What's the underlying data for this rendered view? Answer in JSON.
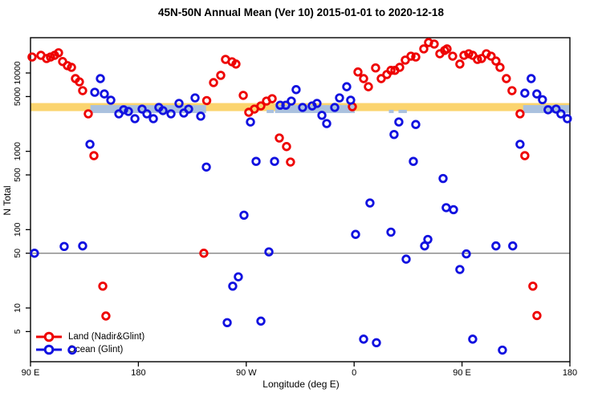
{
  "title": "45N-50N Annual Mean (Ver 10)   2015-01-01 to 2020-12-18",
  "chart_data": {
    "type": "scatter",
    "title": "45N-50N Annual Mean (Ver 10)   2015-01-01 to 2020-12-18",
    "xlabel": "Longitude (deg E)",
    "ylabel": "N Total",
    "y_scale": "log10",
    "x_axis_note": "x stored as degrees along axis from left edge; axis starts at 90E and wraps eastward through 180, 90W, 0, 90E to 180 (450 deg total)",
    "xlim": [
      0,
      450
    ],
    "ylim": [
      2.5,
      30000
    ],
    "grid": false,
    "x_ticks": [
      {
        "pos": 0,
        "label": "90 E"
      },
      {
        "pos": 90,
        "label": "180"
      },
      {
        "pos": 180,
        "label": "90 W"
      },
      {
        "pos": 270,
        "label": "0"
      },
      {
        "pos": 360,
        "label": "90 E"
      },
      {
        "pos": 450,
        "label": "180"
      }
    ],
    "y_ticks": [
      {
        "v": 10000,
        "label": "10000"
      },
      {
        "v": 5000,
        "label": "5000"
      },
      {
        "v": 1000,
        "label": "1000"
      },
      {
        "v": 500,
        "label": "500"
      },
      {
        "v": 100,
        "label": "100"
      },
      {
        "v": 50,
        "label": "50"
      },
      {
        "v": 10,
        "label": "10"
      },
      {
        "v": 5,
        "label": "5"
      }
    ],
    "reference_line": {
      "value": 50,
      "color": "#8c8c8c"
    },
    "bands": {
      "orange": {
        "color": "#FBD46E",
        "range_deg": [
          0,
          450
        ],
        "value_range": [
          3260,
          4130
        ]
      },
      "blue": {
        "color": "#AAC1DE",
        "value_range": [
          3080,
          3890
        ],
        "segments_deg": [
          [
            50,
            146.5
          ],
          [
            204,
            270.5
          ],
          [
            411,
            450
          ]
        ],
        "fragments_deg": [
          [
            197,
            203
          ],
          [
            299,
            303
          ],
          [
            307,
            314
          ]
        ]
      }
    },
    "legend_position": "bottom-left",
    "series": [
      {
        "name": "Land (Nadir&Glint)",
        "color": "#EE0000",
        "points": [
          [
            1.3,
            16000
          ],
          [
            8.7,
            16800
          ],
          [
            13.4,
            15300
          ],
          [
            16.7,
            16000
          ],
          [
            20.1,
            16800
          ],
          [
            23.4,
            18100
          ],
          [
            26.8,
            14000
          ],
          [
            30.8,
            12400
          ],
          [
            34.2,
            11800
          ],
          [
            37.5,
            8480
          ],
          [
            40.8,
            7710
          ],
          [
            43.5,
            5950
          ],
          [
            48.2,
            3010
          ],
          [
            52.9,
            880
          ],
          [
            60.3,
            19
          ],
          [
            62.9,
            7.9
          ],
          [
            144.6,
            50
          ],
          [
            147.0,
            4440
          ],
          [
            152.7,
            7540
          ],
          [
            158.7,
            9330
          ],
          [
            162.7,
            14900
          ],
          [
            168.1,
            13900
          ],
          [
            171.4,
            13000
          ],
          [
            177.5,
            5180
          ],
          [
            182.1,
            3150
          ],
          [
            186.8,
            3460
          ],
          [
            192.2,
            3800
          ],
          [
            196.9,
            4380
          ],
          [
            201.6,
            4700
          ],
          [
            207.6,
            1480
          ],
          [
            213.6,
            1150
          ],
          [
            216.9,
            730
          ],
          [
            268.5,
            3710
          ],
          [
            273.2,
            10300
          ],
          [
            277.9,
            8480
          ],
          [
            281.9,
            6680
          ],
          [
            287.9,
            11600
          ],
          [
            292.6,
            8480
          ],
          [
            297.3,
            9560
          ],
          [
            300.7,
            10800
          ],
          [
            304.0,
            10800
          ],
          [
            308.0,
            11800
          ],
          [
            312.7,
            14600
          ],
          [
            317.4,
            16400
          ],
          [
            321.4,
            16000
          ],
          [
            328.1,
            20300
          ],
          [
            332.1,
            24500
          ],
          [
            336.8,
            23400
          ],
          [
            341.5,
            17600
          ],
          [
            345.5,
            19400
          ],
          [
            347.5,
            20300
          ],
          [
            352.2,
            16400
          ],
          [
            358.2,
            13000
          ],
          [
            361.6,
            16800
          ],
          [
            365.6,
            17600
          ],
          [
            368.9,
            16800
          ],
          [
            372.9,
            14900
          ],
          [
            376.3,
            15300
          ],
          [
            380.3,
            17600
          ],
          [
            384.3,
            16400
          ],
          [
            388.3,
            14200
          ],
          [
            391.7,
            11800
          ],
          [
            397.0,
            8480
          ],
          [
            401.7,
            5950
          ],
          [
            408.4,
            3010
          ],
          [
            412.4,
            880
          ],
          [
            419.1,
            19
          ],
          [
            422.5,
            8
          ]
        ]
      },
      {
        "name": "Ocean (Glint)",
        "color": "#1111E0",
        "points": [
          [
            3.3,
            50
          ],
          [
            28.1,
            61
          ],
          [
            34.8,
            2.9
          ],
          [
            43.5,
            62
          ],
          [
            49.6,
            1230
          ],
          [
            53.6,
            5670
          ],
          [
            58.3,
            8480
          ],
          [
            61.6,
            5400
          ],
          [
            67.0,
            4490
          ],
          [
            73.7,
            3010
          ],
          [
            77.7,
            3390
          ],
          [
            81.7,
            3230
          ],
          [
            87.1,
            2610
          ],
          [
            93.1,
            3460
          ],
          [
            97.1,
            3010
          ],
          [
            102.5,
            2610
          ],
          [
            107.1,
            3630
          ],
          [
            110.5,
            3310
          ],
          [
            117.2,
            3010
          ],
          [
            123.9,
            4090
          ],
          [
            127.9,
            3080
          ],
          [
            131.9,
            3460
          ],
          [
            137.3,
            4810
          ],
          [
            142.0,
            2810
          ],
          [
            146.7,
            630
          ],
          [
            164.1,
            6.5
          ],
          [
            168.7,
            19
          ],
          [
            173.4,
            25
          ],
          [
            178.1,
            153
          ],
          [
            183.5,
            2370
          ],
          [
            188.2,
            744
          ],
          [
            192.2,
            6.8
          ],
          [
            198.9,
            52
          ],
          [
            203.6,
            744
          ],
          [
            208.3,
            3880
          ],
          [
            213.0,
            3880
          ],
          [
            217.6,
            4380
          ],
          [
            221.6,
            6130
          ],
          [
            227.0,
            3630
          ],
          [
            235.0,
            3800
          ],
          [
            239.0,
            4090
          ],
          [
            243.1,
            2880
          ],
          [
            247.1,
            2260
          ],
          [
            253.8,
            3630
          ],
          [
            257.8,
            4810
          ],
          [
            263.8,
            6680
          ],
          [
            267.1,
            4490
          ],
          [
            271.2,
            87
          ],
          [
            277.9,
            4
          ],
          [
            283.2,
            219
          ],
          [
            288.6,
            3.6
          ],
          [
            300.7,
            93
          ],
          [
            303.3,
            1640
          ],
          [
            307.3,
            2370
          ],
          [
            313.4,
            42
          ],
          [
            319.4,
            744
          ],
          [
            321.4,
            2200
          ],
          [
            328.8,
            62
          ],
          [
            331.5,
            75
          ],
          [
            344.2,
            450
          ],
          [
            346.8,
            191
          ],
          [
            352.9,
            180
          ],
          [
            358.2,
            31
          ],
          [
            363.6,
            49
          ],
          [
            368.9,
            4
          ],
          [
            388.3,
            62
          ],
          [
            393.7,
            2.9
          ],
          [
            402.3,
            62
          ],
          [
            408.4,
            1230
          ],
          [
            412.4,
            5530
          ],
          [
            417.7,
            8480
          ],
          [
            422.4,
            5400
          ],
          [
            427.1,
            4560
          ],
          [
            431.8,
            3390
          ],
          [
            438.5,
            3460
          ],
          [
            442.5,
            3010
          ],
          [
            447.9,
            2610
          ]
        ]
      }
    ]
  }
}
